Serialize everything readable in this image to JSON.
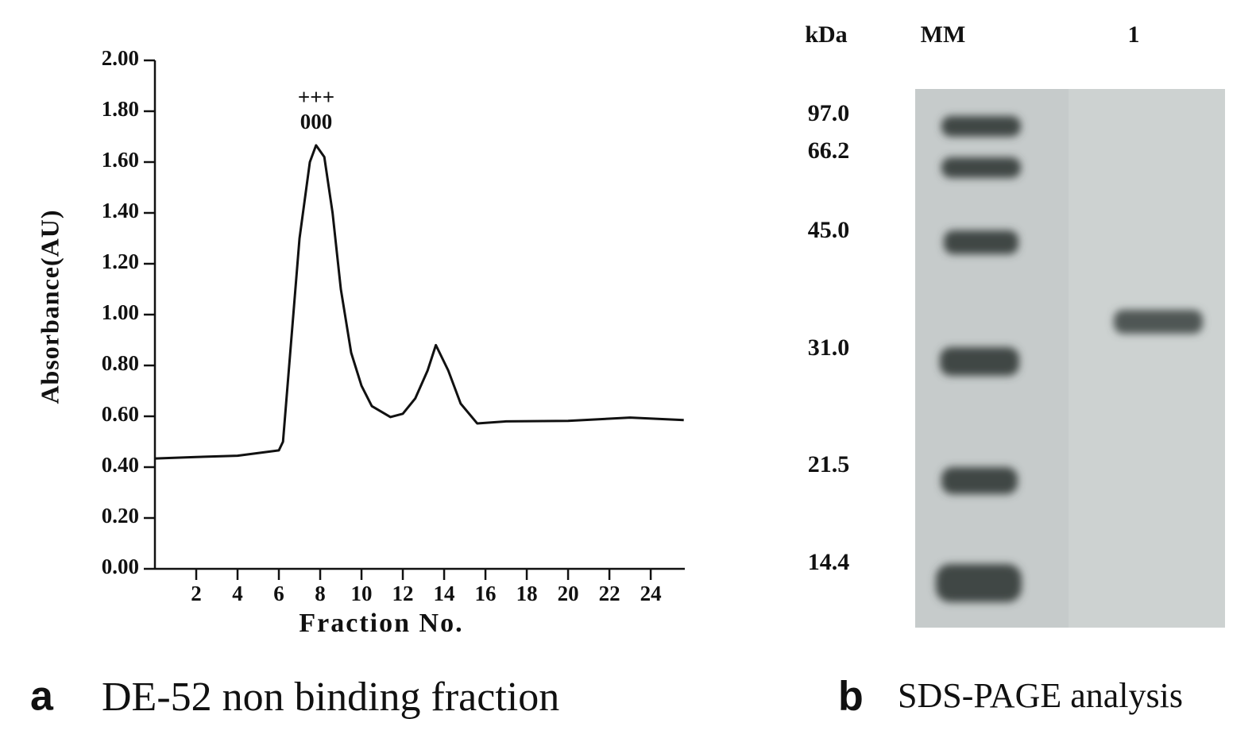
{
  "chart_data": {
    "type": "line",
    "x_label": "Fraction No.",
    "y_label": "Absorbance(AU)",
    "annotations": [
      "+++",
      "000"
    ],
    "x": [
      0,
      2,
      4,
      6,
      6.2,
      7,
      7.5,
      7.8,
      8.2,
      8.6,
      9,
      9.5,
      10,
      10.5,
      11.4,
      12,
      12.6,
      13.2,
      13.6,
      14.2,
      14.8,
      15.6,
      17,
      20,
      23,
      25.6
    ],
    "values": [
      0.434,
      0.44,
      0.445,
      0.466,
      0.5,
      1.3,
      1.6,
      1.666,
      1.62,
      1.4,
      1.1,
      0.85,
      0.72,
      0.64,
      0.597,
      0.61,
      0.67,
      0.78,
      0.88,
      0.78,
      0.65,
      0.572,
      0.58,
      0.582,
      0.595,
      0.585
    ],
    "color": "#111111",
    "xlim": [
      0,
      25.65
    ],
    "xticks": [
      2,
      4,
      6,
      8,
      10,
      12,
      14,
      16,
      18,
      20,
      22,
      24
    ],
    "ylim": [
      0,
      2
    ],
    "yticks": [
      {
        "value": 0,
        "label": "0.00"
      },
      {
        "value": 0.2,
        "label": "0.20"
      },
      {
        "value": 0.4,
        "label": "0.40"
      },
      {
        "value": 0.6,
        "label": "0.60"
      },
      {
        "value": 0.8,
        "label": "0.80"
      },
      {
        "value": 1,
        "label": "1.00"
      },
      {
        "value": 1.2,
        "label": "1.20"
      },
      {
        "value": 1.4,
        "label": "1.40"
      },
      {
        "value": 1.6,
        "label": "1.60"
      },
      {
        "value": 1.8,
        "label": "1.80"
      },
      {
        "value": 2,
        "label": "2.00"
      }
    ]
  },
  "panel_a": {
    "letter": "a",
    "caption": "DE-52 non binding fraction"
  },
  "panel_b": {
    "letter": "b",
    "caption": "SDS-PAGE analysis",
    "unit": "kDa",
    "lanes": [
      "MM",
      "1"
    ],
    "markers": [
      "97.0",
      "66.2",
      "45.0",
      "31.0",
      "21.5",
      "14.4"
    ]
  }
}
